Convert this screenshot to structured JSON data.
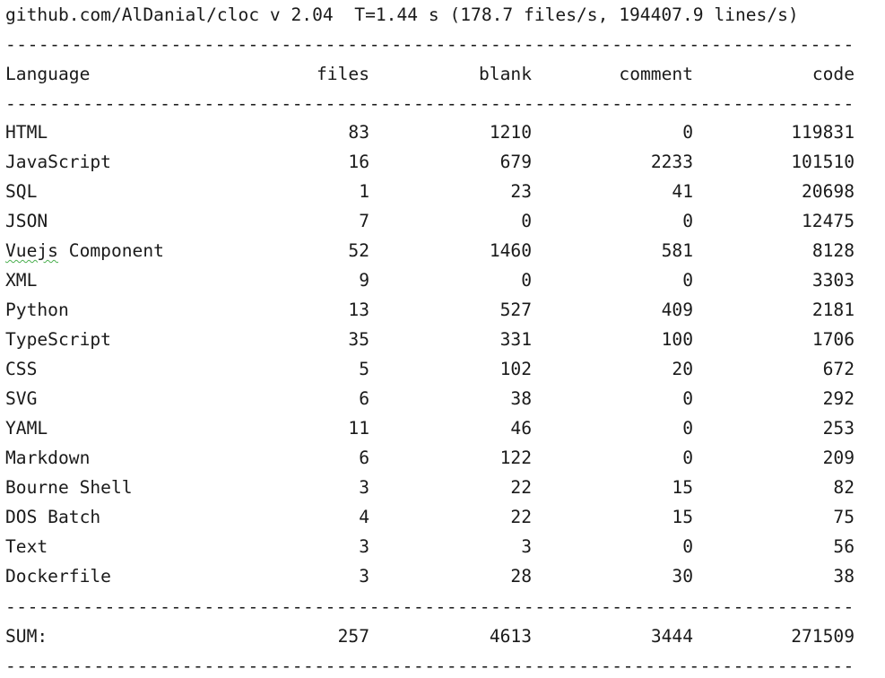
{
  "header": "github.com/AlDanial/cloc v 2.04  T=1.44 s (178.7 files/s, 194407.9 lines/s)",
  "separator_char": "-",
  "columns": {
    "language": "Language",
    "files": "files",
    "blank": "blank",
    "comment": "comment",
    "code": "code"
  },
  "rows": [
    {
      "language": "HTML",
      "files": "83",
      "blank": "1210",
      "comment": "0",
      "code": "119831"
    },
    {
      "language": "JavaScript",
      "files": "16",
      "blank": "679",
      "comment": "2233",
      "code": "101510"
    },
    {
      "language": "SQL",
      "files": "1",
      "blank": "23",
      "comment": "41",
      "code": "20698"
    },
    {
      "language": "JSON",
      "files": "7",
      "blank": "0",
      "comment": "0",
      "code": "12475"
    },
    {
      "language": "Vuejs Component",
      "files": "52",
      "blank": "1460",
      "comment": "581",
      "code": "8128"
    },
    {
      "language": "XML",
      "files": "9",
      "blank": "0",
      "comment": "0",
      "code": "3303"
    },
    {
      "language": "Python",
      "files": "13",
      "blank": "527",
      "comment": "409",
      "code": "2181"
    },
    {
      "language": "TypeScript",
      "files": "35",
      "blank": "331",
      "comment": "100",
      "code": "1706"
    },
    {
      "language": "CSS",
      "files": "5",
      "blank": "102",
      "comment": "20",
      "code": "672"
    },
    {
      "language": "SVG",
      "files": "6",
      "blank": "38",
      "comment": "0",
      "code": "292"
    },
    {
      "language": "YAML",
      "files": "11",
      "blank": "46",
      "comment": "0",
      "code": "253"
    },
    {
      "language": "Markdown",
      "files": "6",
      "blank": "122",
      "comment": "0",
      "code": "209"
    },
    {
      "language": "Bourne Shell",
      "files": "3",
      "blank": "22",
      "comment": "15",
      "code": "82"
    },
    {
      "language": "DOS Batch",
      "files": "4",
      "blank": "22",
      "comment": "15",
      "code": "75"
    },
    {
      "language": "Text",
      "files": "3",
      "blank": "3",
      "comment": "0",
      "code": "56"
    },
    {
      "language": "Dockerfile",
      "files": "3",
      "blank": "28",
      "comment": "30",
      "code": "38"
    }
  ],
  "sum": {
    "language": "SUM:",
    "files": "257",
    "blank": "4613",
    "comment": "3444",
    "code": "271509"
  }
}
